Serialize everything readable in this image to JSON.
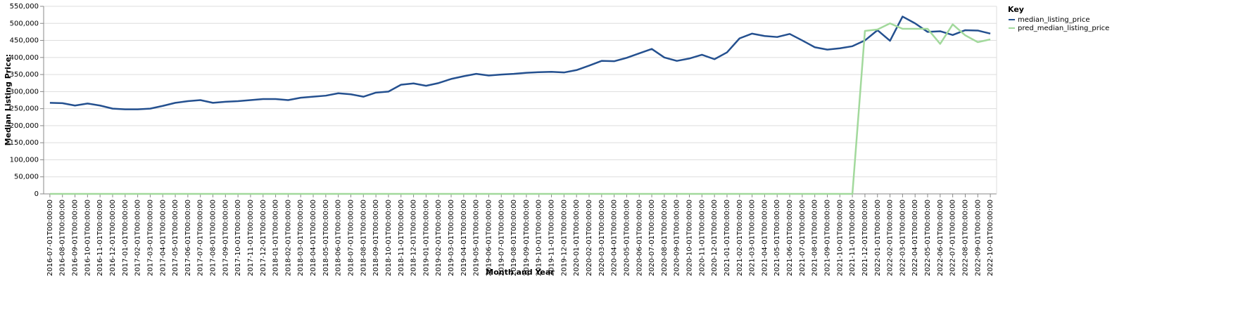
{
  "chart_data": {
    "type": "line",
    "x_label": "Month and Year",
    "y_label": "Median Listing Price:",
    "legend_title": "Key",
    "legend_position": "right",
    "grid": true,
    "categories": [
      "2016-07-01T00:00:00",
      "2016-08-01T00:00:00",
      "2016-09-01T00:00:00",
      "2016-10-01T00:00:00",
      "2016-11-01T00:00:00",
      "2016-12-01T00:00:00",
      "2017-01-01T00:00:00",
      "2017-02-01T00:00:00",
      "2017-03-01T00:00:00",
      "2017-04-01T00:00:00",
      "2017-05-01T00:00:00",
      "2017-06-01T00:00:00",
      "2017-07-01T00:00:00",
      "2017-08-01T00:00:00",
      "2017-09-01T00:00:00",
      "2017-10-01T00:00:00",
      "2017-11-01T00:00:00",
      "2017-12-01T00:00:00",
      "2018-01-01T00:00:00",
      "2018-02-01T00:00:00",
      "2018-03-01T00:00:00",
      "2018-04-01T00:00:00",
      "2018-05-01T00:00:00",
      "2018-06-01T00:00:00",
      "2018-07-01T00:00:00",
      "2018-08-01T00:00:00",
      "2018-09-01T00:00:00",
      "2018-10-01T00:00:00",
      "2018-11-01T00:00:00",
      "2018-12-01T00:00:00",
      "2019-01-01T00:00:00",
      "2019-02-01T00:00:00",
      "2019-03-01T00:00:00",
      "2019-04-01T00:00:00",
      "2019-05-01T00:00:00",
      "2019-06-01T00:00:00",
      "2019-07-01T00:00:00",
      "2019-08-01T00:00:00",
      "2019-09-01T00:00:00",
      "2019-10-01T00:00:00",
      "2019-11-01T00:00:00",
      "2019-12-01T00:00:00",
      "2020-01-01T00:00:00",
      "2020-02-01T00:00:00",
      "2020-03-01T00:00:00",
      "2020-04-01T00:00:00",
      "2020-05-01T00:00:00",
      "2020-06-01T00:00:00",
      "2020-07-01T00:00:00",
      "2020-08-01T00:00:00",
      "2020-09-01T00:00:00",
      "2020-10-01T00:00:00",
      "2020-11-01T00:00:00",
      "2020-12-01T00:00:00",
      "2021-01-01T00:00:00",
      "2021-02-01T00:00:00",
      "2021-03-01T00:00:00",
      "2021-04-01T00:00:00",
      "2021-05-01T00:00:00",
      "2021-06-01T00:00:00",
      "2021-07-01T00:00:00",
      "2021-08-01T00:00:00",
      "2021-09-01T00:00:00",
      "2021-10-01T00:00:00",
      "2021-11-01T00:00:00",
      "2021-12-01T00:00:00",
      "2022-01-01T00:00:00",
      "2022-02-01T00:00:00",
      "2022-03-01T00:00:00",
      "2022-04-01T00:00:00",
      "2022-05-01T00:00:00",
      "2022-06-01T00:00:00",
      "2022-07-01T00:00:00",
      "2022-08-01T00:00:00",
      "2022-09-01T00:00:00",
      "2022-10-01T00:00:00"
    ],
    "series": [
      {
        "name": "median_listing_price",
        "color": "#24508f",
        "values": [
          267000,
          266000,
          259000,
          265000,
          259000,
          250000,
          248000,
          248000,
          250000,
          258000,
          267000,
          272000,
          275000,
          267000,
          270000,
          272000,
          275000,
          278000,
          278000,
          275000,
          282000,
          285000,
          288000,
          295000,
          292000,
          285000,
          297000,
          300000,
          320000,
          324000,
          317000,
          325000,
          337000,
          345000,
          352000,
          347000,
          350000,
          352000,
          355000,
          357000,
          358000,
          356000,
          363000,
          376000,
          390000,
          389000,
          399000,
          412000,
          425000,
          400000,
          390000,
          397000,
          408000,
          395000,
          415000,
          456000,
          470000,
          463000,
          460000,
          469000,
          450000,
          430000,
          423000,
          427000,
          433000,
          450000,
          480000,
          449000,
          520000,
          500000,
          475000,
          477000,
          466000,
          480000,
          479000,
          470000
        ]
      },
      {
        "name": "pred_median_listing_price",
        "color": "#a2d99c",
        "values": [
          0,
          0,
          0,
          0,
          0,
          0,
          0,
          0,
          0,
          0,
          0,
          0,
          0,
          0,
          0,
          0,
          0,
          0,
          0,
          0,
          0,
          0,
          0,
          0,
          0,
          0,
          0,
          0,
          0,
          0,
          0,
          0,
          0,
          0,
          0,
          0,
          0,
          0,
          0,
          0,
          0,
          0,
          0,
          0,
          0,
          0,
          0,
          0,
          0,
          0,
          0,
          0,
          0,
          0,
          0,
          0,
          0,
          0,
          0,
          0,
          0,
          0,
          0,
          0,
          0,
          478000,
          482000,
          500000,
          484000,
          484000,
          484000,
          440000,
          497000,
          465000,
          445000,
          453000
        ]
      }
    ],
    "ylim": [
      0,
      550000
    ],
    "yticks": [
      0,
      {
        "value": 50000,
        "label": "50,000"
      },
      {
        "value": 100000,
        "label": "100,000"
      },
      {
        "value": 150000,
        "label": "150,000"
      },
      {
        "value": 200000,
        "label": "200,000"
      },
      {
        "value": 250000,
        "label": "250,000"
      },
      {
        "value": 300000,
        "label": "300,000"
      },
      {
        "value": 350000,
        "label": "350,000"
      },
      {
        "value": 400000,
        "label": "400,000"
      },
      {
        "value": 450000,
        "label": "450,000"
      },
      {
        "value": 500000,
        "label": "500,000"
      },
      {
        "value": 550000,
        "label": "550,000"
      }
    ]
  }
}
